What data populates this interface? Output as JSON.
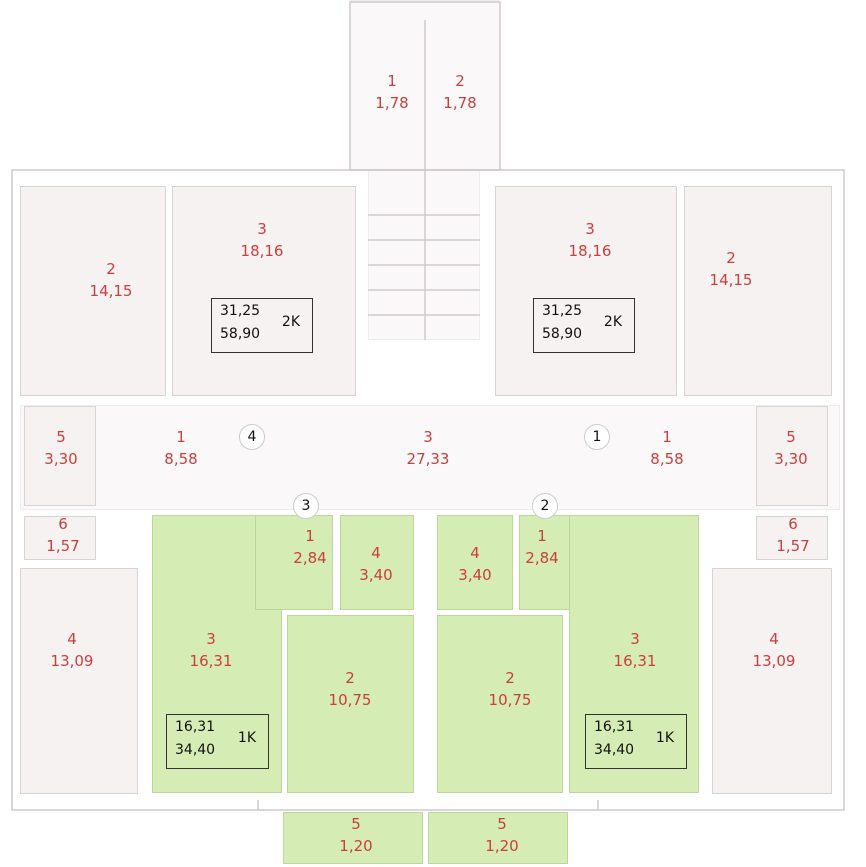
{
  "rooms": [
    {
      "id": "s1",
      "num": "1",
      "area": "1,78"
    },
    {
      "id": "s2",
      "num": "2",
      "area": "1,78"
    },
    {
      "id": "l3",
      "num": "3",
      "area": "18,16"
    },
    {
      "id": "r3",
      "num": "3",
      "area": "18,16"
    },
    {
      "id": "l2",
      "num": "2",
      "area": "14,15"
    },
    {
      "id": "r2",
      "num": "2",
      "area": "14,15"
    },
    {
      "id": "l5",
      "num": "5",
      "area": "3,30"
    },
    {
      "id": "r5",
      "num": "5",
      "area": "3,30"
    },
    {
      "id": "l1",
      "num": "1",
      "area": "8,58"
    },
    {
      "id": "r1",
      "num": "1",
      "area": "8,58"
    },
    {
      "id": "c3",
      "num": "3",
      "area": "27,33"
    },
    {
      "id": "l6",
      "num": "6",
      "area": "1,57"
    },
    {
      "id": "r6",
      "num": "6",
      "area": "1,57"
    },
    {
      "id": "l4",
      "num": "4",
      "area": "13,09"
    },
    {
      "id": "r4",
      "num": "4",
      "area": "13,09"
    },
    {
      "id": "gl3",
      "num": "3",
      "area": "16,31"
    },
    {
      "id": "gr3",
      "num": "3",
      "area": "16,31"
    },
    {
      "id": "gl1",
      "num": "1",
      "area": "2,84"
    },
    {
      "id": "gr1",
      "num": "1",
      "area": "2,84"
    },
    {
      "id": "gl4",
      "num": "4",
      "area": "3,40"
    },
    {
      "id": "gr4",
      "num": "4",
      "area": "3,40"
    },
    {
      "id": "gl2",
      "num": "2",
      "area": "10,75"
    },
    {
      "id": "gr2",
      "num": "2",
      "area": "10,75"
    },
    {
      "id": "bl5",
      "num": "5",
      "area": "1,20"
    },
    {
      "id": "br5",
      "num": "5",
      "area": "1,20"
    }
  ],
  "apartments": [
    {
      "id": "apt-left-2k",
      "living": "31,25",
      "total": "58,90",
      "type": "2K"
    },
    {
      "id": "apt-right-2k",
      "living": "31,25",
      "total": "58,90",
      "type": "2K"
    },
    {
      "id": "apt-left-1k",
      "living": "16,31",
      "total": "34,40",
      "type": "1K"
    },
    {
      "id": "apt-right-1k",
      "living": "16,31",
      "total": "34,40",
      "type": "1K"
    }
  ],
  "door_markers": [
    "4",
    "1",
    "3",
    "2"
  ],
  "colors": {
    "room_label": "#c8403e",
    "green_fill": "#d5ecb4",
    "grey_fill": "#f6f2f2"
  }
}
